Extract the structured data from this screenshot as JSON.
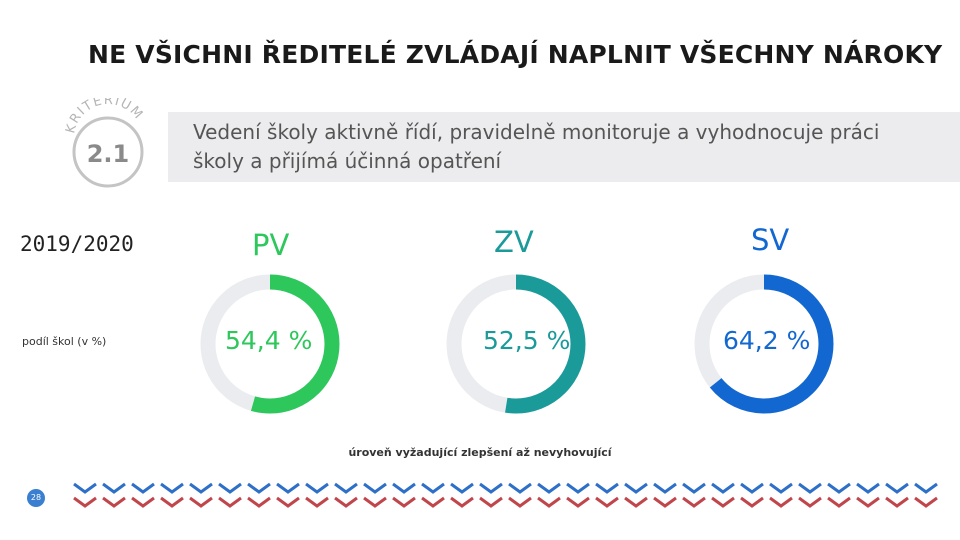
{
  "title": "NE VŠICHNI ŘEDITELÉ ZVLÁDAJÍ NAPLNIT VŠECHNY NÁROKY",
  "badge": {
    "arc_text": "KRITÉRIUM",
    "number": "2.1"
  },
  "description": "Vedení školy aktivně řídí, pravidelně monitoruje a vyhodnocuje práci školy a přijímá účinná opatření",
  "year": "2019/2020",
  "subnote": "podíl škol (v %)",
  "legend": "úroveň vyžadující zlepšení až nevyhovující",
  "page_number": "28",
  "colors": {
    "track": "#eaecef",
    "pv": "#2dc75b",
    "zv": "#1b9a9a",
    "sv": "#1268d0",
    "chev_blue": "#2e6fc8",
    "chev_red": "#c0464c"
  },
  "chart_data": {
    "type": "donut",
    "unit": "%",
    "series": [
      {
        "name": "PV",
        "value": 54.4,
        "label": "54,4 %",
        "color": "#2dc75b"
      },
      {
        "name": "ZV",
        "value": 52.5,
        "label": "52,5 %",
        "color": "#1b9a9a"
      },
      {
        "name": "SV",
        "value": 64.2,
        "label": "64,2 %",
        "color": "#1268d0"
      }
    ]
  }
}
